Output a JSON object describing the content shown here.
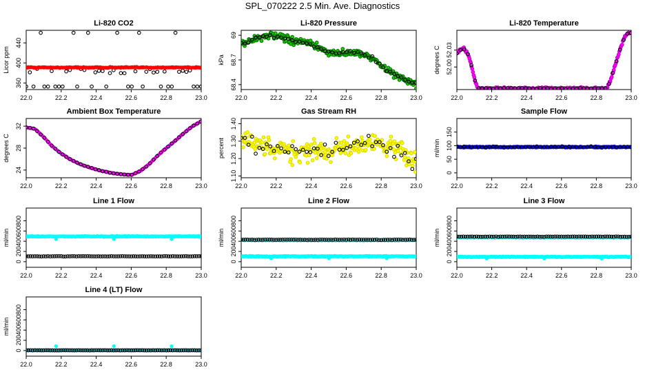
{
  "page": {
    "title": "SPL_070222  2.5 Min. Ave. Diagnostics"
  },
  "chart_data": [
    {
      "id": "co2",
      "type": "scatter",
      "title": "Li-820 CO2",
      "ylabel": "Licor ppm",
      "xlim": [
        22.0,
        23.0
      ],
      "ylim": [
        347,
        465
      ],
      "yticks": [
        360,
        400,
        440
      ],
      "xticks": [
        "22.0",
        "22.2",
        "22.4",
        "22.6",
        "22.8",
        "23.0"
      ],
      "series": [
        {
          "name": "black",
          "color": "#000000",
          "shape": "circle",
          "gen": "binary",
          "lo": 353,
          "hi": 460,
          "mid": 384,
          "step": 0.0208
        },
        {
          "name": "red",
          "color": "#ff0000",
          "shape": "filled",
          "gen": "flat",
          "y": 391,
          "noise": 1.5,
          "step": 0.004
        }
      ]
    },
    {
      "id": "pressure",
      "type": "scatter",
      "title": "Li-820 Pressure",
      "ylabel": "kPa",
      "xlim": [
        22.0,
        23.0
      ],
      "ylim": [
        68.34,
        69.06
      ],
      "yticks": [
        68.4,
        68.7,
        69.0
      ],
      "xticks": [
        "22.0",
        "22.2",
        "22.4",
        "22.6",
        "22.8",
        "23.0"
      ],
      "series": [
        {
          "name": "green",
          "color": "#22cc00",
          "shape": "circle",
          "gen": "curve",
          "noise": 0.06,
          "step": 0.004,
          "stroke": "#007700",
          "points": [
            [
              22.0,
              68.9
            ],
            [
              22.05,
              68.93
            ],
            [
              22.1,
              68.97
            ],
            [
              22.15,
              69.0
            ],
            [
              22.2,
              68.99
            ],
            [
              22.25,
              68.96
            ],
            [
              22.3,
              68.93
            ],
            [
              22.35,
              68.92
            ],
            [
              22.4,
              68.89
            ],
            [
              22.45,
              68.84
            ],
            [
              22.5,
              68.79
            ],
            [
              22.55,
              68.78
            ],
            [
              22.6,
              68.79
            ],
            [
              22.65,
              68.79
            ],
            [
              22.7,
              68.77
            ],
            [
              22.75,
              68.72
            ],
            [
              22.8,
              68.63
            ],
            [
              22.85,
              68.55
            ],
            [
              22.9,
              68.5
            ],
            [
              22.95,
              68.45
            ],
            [
              23.0,
              68.4
            ]
          ]
        },
        {
          "name": "black",
          "color": "#000000",
          "shape": "circle",
          "gen": "curve",
          "noise": 0.03,
          "step": 0.0208,
          "points": [
            [
              22.0,
              68.9
            ],
            [
              22.05,
              68.93
            ],
            [
              22.1,
              68.97
            ],
            [
              22.15,
              69.0
            ],
            [
              22.2,
              68.99
            ],
            [
              22.25,
              68.96
            ],
            [
              22.3,
              68.93
            ],
            [
              22.35,
              68.92
            ],
            [
              22.4,
              68.89
            ],
            [
              22.45,
              68.84
            ],
            [
              22.5,
              68.79
            ],
            [
              22.55,
              68.78
            ],
            [
              22.6,
              68.79
            ],
            [
              22.65,
              68.79
            ],
            [
              22.7,
              68.77
            ],
            [
              22.75,
              68.72
            ],
            [
              22.8,
              68.63
            ],
            [
              22.85,
              68.55
            ],
            [
              22.9,
              68.5
            ],
            [
              22.95,
              68.45
            ],
            [
              23.0,
              68.4
            ]
          ]
        }
      ]
    },
    {
      "id": "licortemp",
      "type": "scatter",
      "title": "Li-820 Temperature",
      "ylabel": "degrees C",
      "xlim": [
        22.0,
        23.0
      ],
      "ylim": [
        51.96,
        52.065
      ],
      "yticks": [
        52.0,
        52.03
      ],
      "ytick_labels": [
        "52.00",
        "52.03"
      ],
      "xticks": [
        "22.0",
        "22.2",
        "22.4",
        "22.6",
        "22.8",
        "23.0"
      ],
      "series": [
        {
          "name": "magenta",
          "color": "#ff00ff",
          "shape": "circle",
          "gen": "curve",
          "noise": 0.003,
          "step": 0.004,
          "stroke": "#cc00cc",
          "points": [
            [
              22.0,
              52.025
            ],
            [
              22.02,
              52.03
            ],
            [
              22.04,
              52.032
            ],
            [
              22.06,
              52.025
            ],
            [
              22.08,
              52.008
            ],
            [
              22.1,
              51.98
            ],
            [
              22.12,
              51.962
            ],
            [
              22.5,
              51.962
            ],
            [
              22.86,
              51.962
            ],
            [
              22.88,
              51.975
            ],
            [
              22.9,
              51.995
            ],
            [
              22.92,
              52.015
            ],
            [
              22.94,
              52.035
            ],
            [
              22.96,
              52.052
            ],
            [
              22.98,
              52.06
            ],
            [
              23.0,
              52.06
            ]
          ]
        },
        {
          "name": "black",
          "color": "#000000",
          "shape": "circle",
          "gen": "curve",
          "noise": 0.0015,
          "step": 0.0208,
          "points": [
            [
              22.0,
              52.025
            ],
            [
              22.02,
              52.03
            ],
            [
              22.04,
              52.032
            ],
            [
              22.06,
              52.025
            ],
            [
              22.08,
              52.008
            ],
            [
              22.1,
              51.98
            ],
            [
              22.12,
              51.962
            ],
            [
              22.5,
              51.962
            ],
            [
              22.86,
              51.962
            ],
            [
              22.88,
              51.975
            ],
            [
              22.9,
              51.995
            ],
            [
              22.92,
              52.015
            ],
            [
              22.94,
              52.035
            ],
            [
              22.96,
              52.052
            ],
            [
              22.98,
              52.06
            ],
            [
              23.0,
              52.06
            ]
          ]
        }
      ]
    },
    {
      "id": "boxtemp",
      "type": "scatter",
      "title": "Ambient Box Temperature",
      "ylabel": "degrees C",
      "xlim": [
        22.0,
        23.0
      ],
      "ylim": [
        22.6,
        33.4
      ],
      "yticks": [
        24,
        28,
        32
      ],
      "xticks": [
        "22.0",
        "22.2",
        "22.4",
        "22.6",
        "22.8",
        "23.0"
      ],
      "series": [
        {
          "name": "magenta",
          "color": "#ff00ff",
          "shape": "filled",
          "gen": "curve",
          "noise": 0.08,
          "step": 0.004,
          "points": [
            [
              22.0,
              31.8
            ],
            [
              22.05,
              31.5
            ],
            [
              22.1,
              30.0
            ],
            [
              22.15,
              28.3
            ],
            [
              22.2,
              27.0
            ],
            [
              22.25,
              26.0
            ],
            [
              22.3,
              25.2
            ],
            [
              22.35,
              24.6
            ],
            [
              22.4,
              24.1
            ],
            [
              22.45,
              23.7
            ],
            [
              22.5,
              23.4
            ],
            [
              22.55,
              23.2
            ],
            [
              22.6,
              23.1
            ],
            [
              22.65,
              23.8
            ],
            [
              22.7,
              25.0
            ],
            [
              22.75,
              26.6
            ],
            [
              22.8,
              28.0
            ],
            [
              22.85,
              29.3
            ],
            [
              22.9,
              30.7
            ],
            [
              22.95,
              32.0
            ],
            [
              23.0,
              32.9
            ]
          ]
        },
        {
          "name": "black",
          "color": "#000000",
          "shape": "circle",
          "gen": "curve",
          "noise": 0.05,
          "step": 0.0208,
          "points": [
            [
              22.0,
              31.8
            ],
            [
              22.05,
              31.5
            ],
            [
              22.1,
              30.0
            ],
            [
              22.15,
              28.3
            ],
            [
              22.2,
              27.0
            ],
            [
              22.25,
              26.0
            ],
            [
              22.3,
              25.2
            ],
            [
              22.35,
              24.6
            ],
            [
              22.4,
              24.1
            ],
            [
              22.45,
              23.7
            ],
            [
              22.5,
              23.4
            ],
            [
              22.55,
              23.2
            ],
            [
              22.6,
              23.1
            ],
            [
              22.65,
              23.8
            ],
            [
              22.7,
              25.0
            ],
            [
              22.75,
              26.6
            ],
            [
              22.8,
              28.0
            ],
            [
              22.85,
              29.3
            ],
            [
              22.9,
              30.7
            ],
            [
              22.95,
              32.0
            ],
            [
              23.0,
              32.9
            ]
          ]
        }
      ]
    },
    {
      "id": "rh",
      "type": "scatter",
      "title": "Gas Stream RH",
      "ylabel": "percent",
      "xlim": [
        22.0,
        23.0
      ],
      "ylim": [
        1.09,
        1.43
      ],
      "yticks": [
        1.1,
        1.2,
        1.3,
        1.4
      ],
      "ytick_labels": [
        "1.10",
        "1.20",
        "1.30",
        "1.40"
      ],
      "xticks": [
        "22.0",
        "22.2",
        "22.4",
        "22.6",
        "22.8",
        "23.0"
      ],
      "series": [
        {
          "name": "yellow",
          "color": "#ffff00",
          "shape": "circle",
          "gen": "curve",
          "noise": 0.09,
          "step": 0.004,
          "stroke": "#dddd00",
          "points": [
            [
              22.0,
              1.31
            ],
            [
              22.1,
              1.27
            ],
            [
              22.2,
              1.25
            ],
            [
              22.3,
              1.24
            ],
            [
              22.4,
              1.25
            ],
            [
              22.5,
              1.25
            ],
            [
              22.6,
              1.26
            ],
            [
              22.7,
              1.29
            ],
            [
              22.8,
              1.28
            ],
            [
              22.9,
              1.25
            ],
            [
              23.0,
              1.18
            ]
          ]
        },
        {
          "name": "black",
          "color": "#000000",
          "shape": "circle",
          "gen": "curve",
          "noise": 0.07,
          "step": 0.0208,
          "points": [
            [
              22.0,
              1.31
            ],
            [
              22.1,
              1.27
            ],
            [
              22.2,
              1.25
            ],
            [
              22.3,
              1.24
            ],
            [
              22.4,
              1.25
            ],
            [
              22.5,
              1.25
            ],
            [
              22.6,
              1.26
            ],
            [
              22.7,
              1.29
            ],
            [
              22.8,
              1.28
            ],
            [
              22.9,
              1.25
            ],
            [
              23.0,
              1.18
            ]
          ]
        }
      ]
    },
    {
      "id": "sampleflow",
      "type": "scatter",
      "title": "Sample Flow",
      "ylabel": "ml/min",
      "xlim": [
        22.0,
        23.0
      ],
      "ylim": [
        -18,
        200
      ],
      "yticks": [
        0,
        50,
        100,
        150
      ],
      "xticks": [
        "22.0",
        "22.2",
        "22.4",
        "22.6",
        "22.8",
        "23.0"
      ],
      "series": [
        {
          "name": "blue",
          "color": "#0000ee",
          "shape": "filled",
          "gen": "flat",
          "y": 95,
          "noise": 3,
          "step": 0.003
        },
        {
          "name": "black",
          "color": "#000000",
          "shape": "circle",
          "gen": "flat",
          "y": 95,
          "noise": 3,
          "step": 0.0208
        }
      ]
    },
    {
      "id": "line1",
      "type": "scatter",
      "title": "Line 1 Flow",
      "ylabel": "ml/min",
      "xlim": [
        22.0,
        23.0
      ],
      "ylim": [
        -110,
        1050
      ],
      "yticks": [
        0,
        200,
        400,
        600,
        800
      ],
      "xticks": [
        "22.0",
        "22.2",
        "22.4",
        "22.6",
        "22.8",
        "23.0"
      ],
      "series": [
        {
          "name": "cyan",
          "color": "#00ffff",
          "shape": "filled",
          "gen": "flat",
          "y": 495,
          "noise": 12,
          "step": 0.003,
          "dips": [
            22.17,
            22.5,
            22.83
          ],
          "dip": -55
        },
        {
          "name": "black",
          "color": "#000000",
          "shape": "circle",
          "gen": "flat",
          "y": 105,
          "noise": 4,
          "step": 0.0125
        }
      ]
    },
    {
      "id": "line2",
      "type": "scatter",
      "title": "Line 2 Flow",
      "ylabel": "ml/min",
      "xlim": [
        22.0,
        23.0
      ],
      "ylim": [
        -110,
        1050
      ],
      "yticks": [
        0,
        200,
        400,
        600,
        800
      ],
      "xticks": [
        "22.0",
        "22.2",
        "22.4",
        "22.6",
        "22.8",
        "23.0"
      ],
      "series": [
        {
          "name": "cyan",
          "color": "#00ffff",
          "shape": "filled",
          "gen": "flat",
          "y": 105,
          "noise": 12,
          "step": 0.003,
          "dips": [
            22.17,
            22.5,
            22.83
          ],
          "dip": -40
        },
        {
          "name": "cyan",
          "color": "#00ffff",
          "shape": "circle",
          "gen": "flat",
          "y": 415,
          "noise": 8,
          "step": 0.02
        },
        {
          "name": "black",
          "color": "#000000",
          "shape": "circle",
          "gen": "flat",
          "y": 430,
          "noise": 5,
          "step": 0.0125
        }
      ]
    },
    {
      "id": "line3",
      "type": "scatter",
      "title": "Line 3 Flow",
      "ylabel": "ml/min",
      "xlim": [
        22.0,
        23.0
      ],
      "ylim": [
        -110,
        1050
      ],
      "yticks": [
        0,
        200,
        400,
        600,
        800
      ],
      "xticks": [
        "22.0",
        "22.2",
        "22.4",
        "22.6",
        "22.8",
        "23.0"
      ],
      "series": [
        {
          "name": "cyan",
          "color": "#00ffff",
          "shape": "filled",
          "gen": "flat",
          "y": 95,
          "noise": 12,
          "step": 0.003,
          "dips": [
            22.17,
            22.5,
            22.83
          ],
          "dip": -35
        },
        {
          "name": "cyan",
          "color": "#00ffff",
          "shape": "circle",
          "gen": "flat",
          "y": 470,
          "noise": 8,
          "step": 0.02
        },
        {
          "name": "black",
          "color": "#000000",
          "shape": "circle",
          "gen": "flat",
          "y": 490,
          "noise": 5,
          "step": 0.0125
        }
      ]
    },
    {
      "id": "line4",
      "type": "scatter",
      "title": "Line 4 (LT) Flow",
      "ylabel": "ml/min",
      "xlim": [
        22.0,
        23.0
      ],
      "ylim": [
        -110,
        1050
      ],
      "yticks": [
        0,
        200,
        400,
        600,
        800
      ],
      "xticks": [
        "22.0",
        "22.2",
        "22.4",
        "22.6",
        "22.8",
        "23.0"
      ],
      "series": [
        {
          "name": "cyan",
          "color": "#00ffff",
          "shape": "filled",
          "gen": "flat",
          "y": 5,
          "noise": 8,
          "step": 0.003,
          "dips": [
            22.17,
            22.5,
            22.83
          ],
          "dip": 80
        },
        {
          "name": "black",
          "color": "#000000",
          "shape": "circle",
          "gen": "flat",
          "y": 5,
          "noise": 3,
          "step": 0.0125
        }
      ]
    }
  ]
}
